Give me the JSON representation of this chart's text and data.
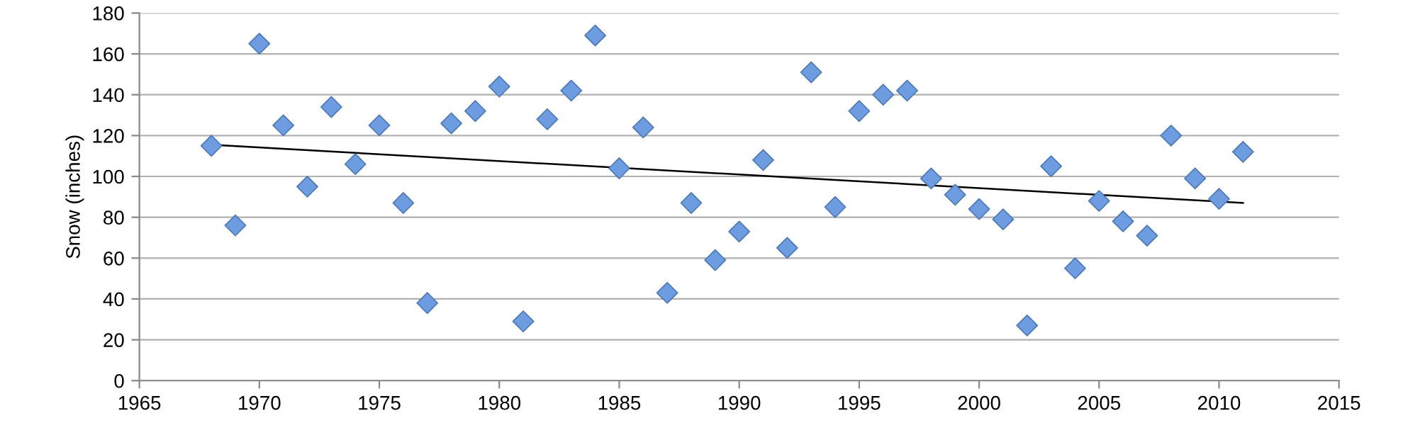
{
  "chart_data": {
    "type": "scatter",
    "ylabel": "Snow (inches)",
    "grid": "y",
    "xlim": [
      1965,
      2015
    ],
    "xticks": [
      1965,
      1970,
      1975,
      1980,
      1985,
      1990,
      1995,
      2000,
      2005,
      2010,
      2015
    ],
    "ylim": [
      0,
      180
    ],
    "yticks": [
      0,
      20,
      40,
      60,
      80,
      100,
      120,
      140,
      160,
      180
    ],
    "x": [
      1968,
      1969,
      1970,
      1971,
      1972,
      1973,
      1974,
      1975,
      1976,
      1977,
      1978,
      1979,
      1980,
      1981,
      1982,
      1983,
      1984,
      1985,
      1986,
      1987,
      1988,
      1989,
      1990,
      1991,
      1992,
      1993,
      1994,
      1995,
      1996,
      1997,
      1998,
      1999,
      2000,
      2001,
      2002,
      2003,
      2004,
      2005,
      2006,
      2007,
      2008,
      2009,
      2010,
      2011
    ],
    "series": [
      {
        "marker": "diamond",
        "color": "#6d9de0",
        "values": [
          115,
          76,
          165,
          125,
          95,
          134,
          106,
          125,
          87,
          38,
          126,
          132,
          144,
          29,
          128,
          142,
          169,
          104,
          124,
          43,
          87,
          59,
          73,
          108,
          65,
          151,
          85,
          132,
          140,
          142,
          99,
          91,
          84,
          79,
          27,
          105,
          55,
          88,
          78,
          71,
          120,
          99,
          89,
          112
        ]
      },
      {
        "type": "line",
        "color": "#000000",
        "x": [
          1968,
          2011
        ],
        "values": [
          115.5,
          87
        ]
      }
    ]
  }
}
